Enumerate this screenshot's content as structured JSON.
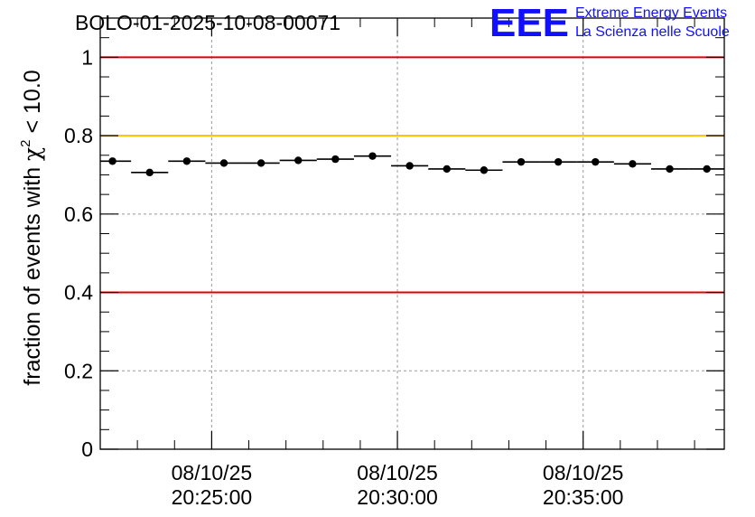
{
  "chart_data": {
    "type": "scatter",
    "title": "BOLO-01-2025-10-08-00071",
    "ylabel_prefix": "fraction of events with ",
    "ylabel_chi": "χ",
    "ylabel_sup": "2",
    "ylabel_suffix": " < 10.0",
    "ylim": [
      0,
      1.1
    ],
    "yticks": [
      0,
      0.2,
      0.4,
      0.6,
      0.8,
      1
    ],
    "ytick_labels": [
      "0",
      "0.2",
      "0.4",
      "0.6",
      "0.8",
      "1"
    ],
    "xlim_minutes": [
      22.0,
      38.8
    ],
    "xticks_minutes": [
      25,
      30,
      35
    ],
    "xtick_labels": [
      {
        "date": "08/10/25",
        "time": "20:25:00"
      },
      {
        "date": "08/10/25",
        "time": "20:30:00"
      },
      {
        "date": "08/10/25",
        "time": "20:35:00"
      }
    ],
    "bin_width_minutes": 1.0,
    "x_minutes": [
      22.33,
      23.33,
      24.33,
      25.33,
      26.33,
      27.33,
      28.33,
      29.33,
      30.33,
      31.33,
      32.33,
      33.33,
      34.33,
      35.33,
      36.33,
      37.33,
      38.33
    ],
    "values": [
      0.735,
      0.706,
      0.735,
      0.73,
      0.73,
      0.737,
      0.74,
      0.748,
      0.723,
      0.715,
      0.712,
      0.733,
      0.733,
      0.733,
      0.728,
      0.715,
      0.715
    ],
    "reference_lines": [
      {
        "value": 1.0,
        "color": "#e00000"
      },
      {
        "value": 0.8,
        "color": "#ffc000"
      },
      {
        "value": 0.4,
        "color": "#e00000"
      }
    ],
    "grid": true
  },
  "logo": {
    "mark": "EEE",
    "line1": "Extreme Energy Events",
    "line2": "La Scienza nelle Scuole",
    "color": "#1010ff"
  }
}
